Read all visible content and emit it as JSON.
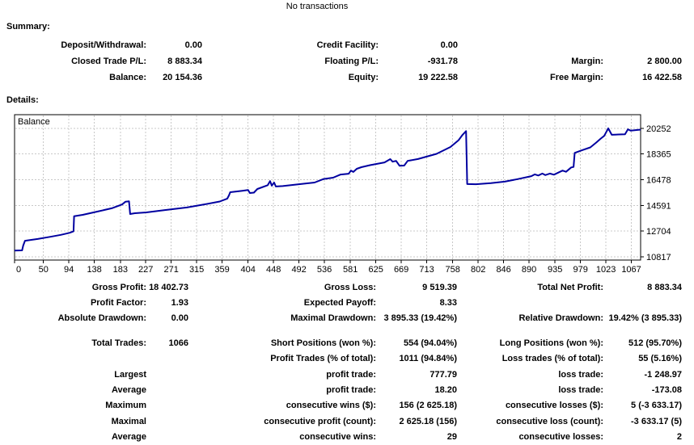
{
  "header": {
    "title": "No transactions"
  },
  "summary": {
    "heading": "Summary:",
    "rows": [
      {
        "c": [
          "Deposit/Withdrawal:",
          "0.00",
          "Credit Facility:",
          "0.00",
          "",
          ""
        ]
      },
      {
        "c": [
          "Closed Trade P/L:",
          "8 883.34",
          "Floating P/L:",
          "-931.78",
          "Margin:",
          "2 800.00"
        ]
      },
      {
        "c": [
          "Balance:",
          "20 154.36",
          "Equity:",
          "19 222.58",
          "Free Margin:",
          "16 422.58"
        ]
      }
    ]
  },
  "details": {
    "heading": "Details:",
    "rows": [
      {
        "c": [
          "Gross Profit:",
          "18 402.73",
          "Gross Loss:",
          "9 519.39",
          "Total Net Profit:",
          "8 883.34"
        ]
      },
      {
        "c": [
          "Profit Factor:",
          "1.93",
          "Expected Payoff:",
          "8.33",
          "",
          ""
        ]
      },
      {
        "c": [
          "Absolute Drawdown:",
          "0.00",
          "Maximal Drawdown:",
          "3 895.33 (19.42%)",
          "Relative Drawdown:",
          "19.42% (3 895.33)"
        ]
      },
      {
        "c": [
          "Total Trades:",
          "1066",
          "Short Positions (won %):",
          "554 (94.04%)",
          "Long Positions (won %):",
          "512 (95.70%)"
        ]
      },
      {
        "c": [
          "",
          "",
          "Profit Trades (% of total):",
          "1011 (94.84%)",
          "Loss trades (% of total):",
          "55 (5.16%)"
        ]
      },
      {
        "c": [
          "Largest",
          "",
          "profit trade:",
          "777.79",
          "loss trade:",
          "-1 248.97"
        ]
      },
      {
        "c": [
          "Average",
          "",
          "profit trade:",
          "18.20",
          "loss trade:",
          "-173.08"
        ]
      },
      {
        "c": [
          "Maximum",
          "",
          "consecutive wins ($):",
          "156 (2 625.18)",
          "consecutive losses ($):",
          "5 (-3 633.17)"
        ]
      },
      {
        "c": [
          "Maximal",
          "",
          "consecutive profit (count):",
          "2 625.18 (156)",
          "consecutive loss (count):",
          "-3 633.17 (5)"
        ]
      },
      {
        "c": [
          "Average",
          "",
          "consecutive wins:",
          "29",
          "consecutive losses:",
          "2"
        ]
      }
    ]
  },
  "chart_data": {
    "type": "line",
    "title": "Balance",
    "xlabel": "",
    "ylabel": "",
    "legend_position": "top-left",
    "grid": true,
    "line_color": "#0000A0",
    "grid_color": "#c8c8c8",
    "xlim": [
      0,
      1083
    ],
    "ylim": [
      10580,
      21254
    ],
    "x_ticks": [
      0,
      50,
      94,
      138,
      183,
      227,
      271,
      315,
      359,
      404,
      448,
      492,
      536,
      581,
      625,
      669,
      713,
      758,
      802,
      846,
      890,
      935,
      979,
      1023,
      1067
    ],
    "y_ticks": [
      20252,
      18365,
      16478,
      14591,
      12704,
      10817
    ],
    "series": [
      {
        "name": "Balance",
        "points": [
          [
            0,
            11271
          ],
          [
            13,
            11290
          ],
          [
            15,
            11650
          ],
          [
            18,
            12000
          ],
          [
            40,
            12130
          ],
          [
            62,
            12290
          ],
          [
            80,
            12430
          ],
          [
            95,
            12580
          ],
          [
            102,
            12690
          ],
          [
            103,
            13800
          ],
          [
            118,
            13900
          ],
          [
            143,
            14140
          ],
          [
            168,
            14380
          ],
          [
            186,
            14660
          ],
          [
            192,
            14870
          ],
          [
            198,
            14900
          ],
          [
            200,
            13960
          ],
          [
            208,
            14020
          ],
          [
            228,
            14080
          ],
          [
            260,
            14250
          ],
          [
            298,
            14440
          ],
          [
            326,
            14650
          ],
          [
            355,
            14880
          ],
          [
            368,
            15090
          ],
          [
            371,
            15330
          ],
          [
            373,
            15560
          ],
          [
            394,
            15670
          ],
          [
            404,
            15730
          ],
          [
            407,
            15500
          ],
          [
            414,
            15530
          ],
          [
            420,
            15800
          ],
          [
            438,
            16080
          ],
          [
            442,
            16380
          ],
          [
            445,
            16040
          ],
          [
            449,
            16270
          ],
          [
            452,
            15980
          ],
          [
            464,
            16010
          ],
          [
            492,
            16150
          ],
          [
            519,
            16270
          ],
          [
            534,
            16520
          ],
          [
            551,
            16630
          ],
          [
            564,
            16860
          ],
          [
            578,
            16920
          ],
          [
            582,
            17150
          ],
          [
            586,
            17050
          ],
          [
            592,
            17280
          ],
          [
            600,
            17400
          ],
          [
            615,
            17550
          ],
          [
            640,
            17750
          ],
          [
            650,
            17990
          ],
          [
            654,
            17800
          ],
          [
            660,
            17860
          ],
          [
            666,
            17500
          ],
          [
            674,
            17520
          ],
          [
            680,
            17860
          ],
          [
            698,
            18000
          ],
          [
            730,
            18380
          ],
          [
            754,
            18880
          ],
          [
            768,
            19380
          ],
          [
            775,
            19780
          ],
          [
            781,
            20050
          ],
          [
            783,
            16160
          ],
          [
            798,
            16150
          ],
          [
            824,
            16230
          ],
          [
            848,
            16340
          ],
          [
            870,
            16520
          ],
          [
            894,
            16740
          ],
          [
            900,
            16870
          ],
          [
            906,
            16790
          ],
          [
            913,
            16930
          ],
          [
            918,
            16820
          ],
          [
            926,
            16930
          ],
          [
            933,
            16850
          ],
          [
            948,
            17150
          ],
          [
            954,
            17060
          ],
          [
            963,
            17380
          ],
          [
            967,
            17420
          ],
          [
            969,
            18450
          ],
          [
            982,
            18650
          ],
          [
            996,
            18850
          ],
          [
            1006,
            19200
          ],
          [
            1014,
            19500
          ],
          [
            1020,
            19700
          ],
          [
            1027,
            20250
          ],
          [
            1033,
            19780
          ],
          [
            1045,
            19800
          ],
          [
            1056,
            19820
          ],
          [
            1061,
            20180
          ],
          [
            1066,
            20080
          ],
          [
            1074,
            20120
          ],
          [
            1083,
            20154
          ]
        ]
      }
    ]
  }
}
